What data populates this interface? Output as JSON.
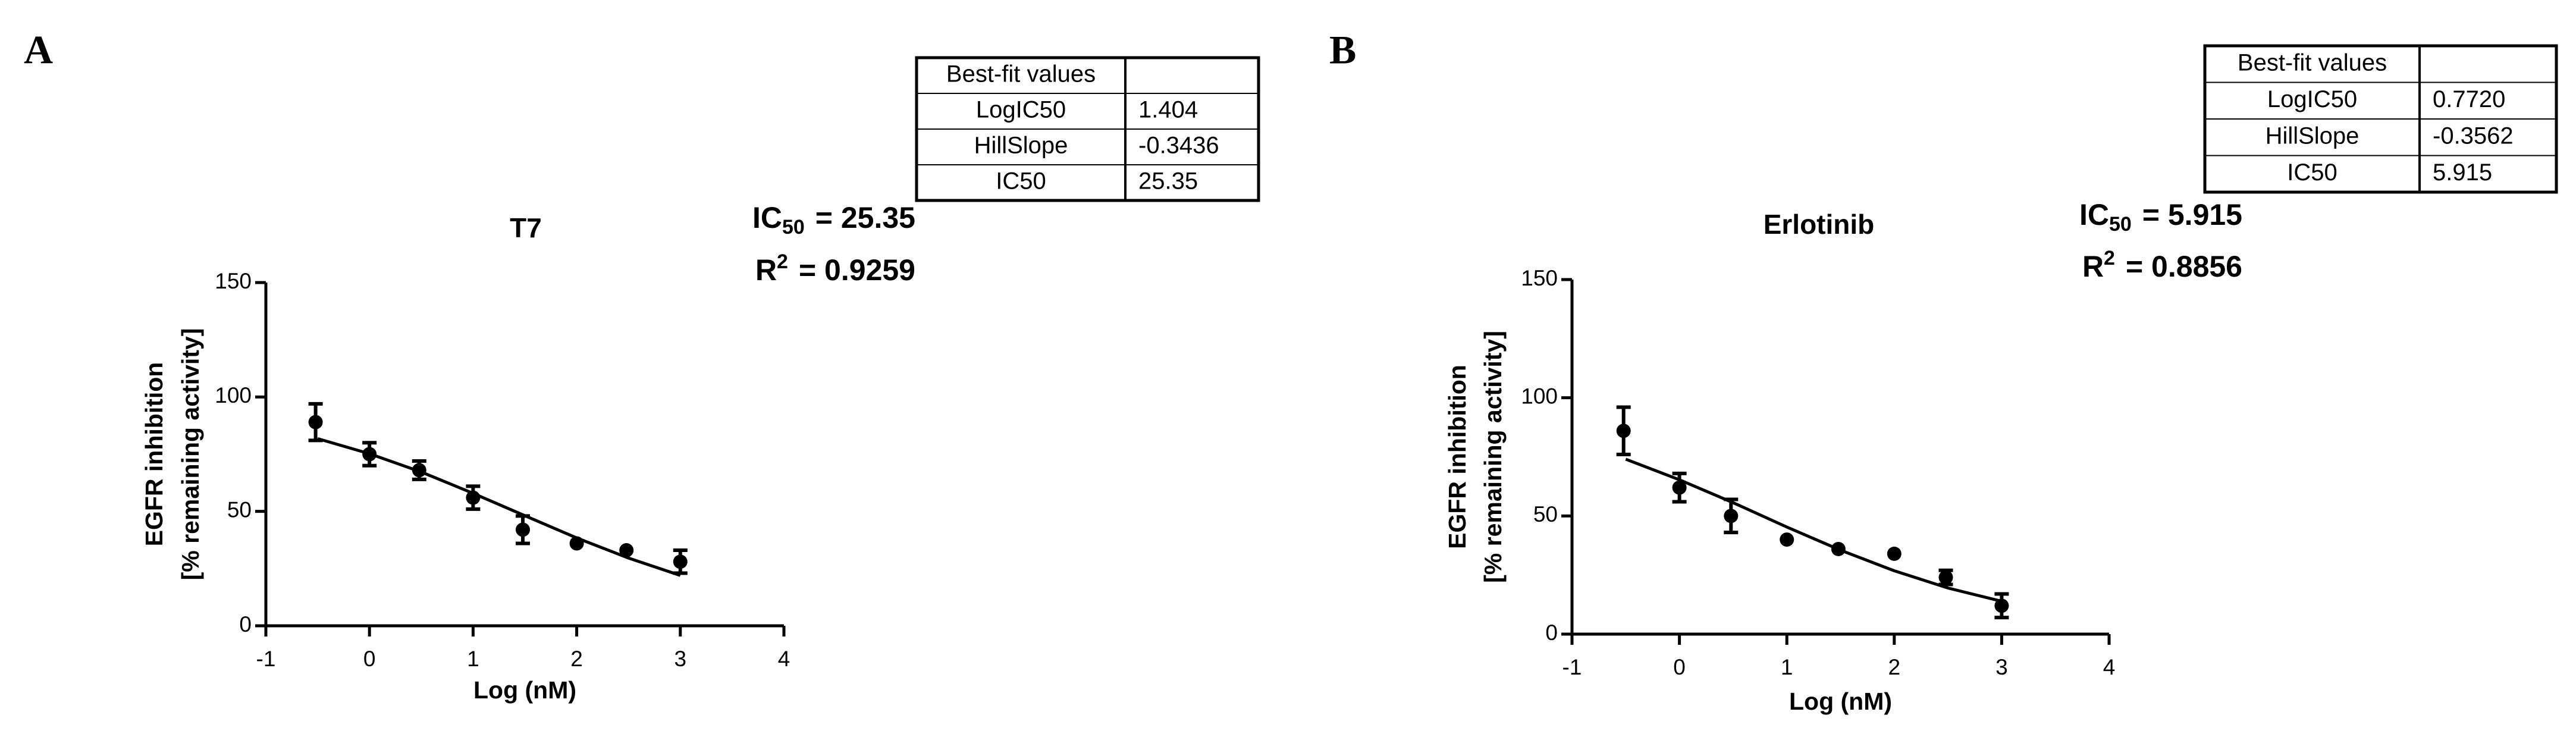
{
  "chart_data": [
    {
      "type": "scatter",
      "panel_label": "A",
      "title": "T7",
      "xlabel": "Log (nM)",
      "ylabel": [
        "EGFR inhibition",
        "[% remaining activity]"
      ],
      "x": [
        -0.52,
        0,
        0.48,
        1,
        1.48,
        2,
        2.48,
        3
      ],
      "values": [
        89,
        75,
        68,
        56,
        42,
        36,
        33,
        28
      ],
      "errors": [
        8,
        5,
        4,
        5,
        6,
        0,
        0,
        5
      ],
      "color": "#000000",
      "fit": {
        "x": [
          -0.5,
          0,
          0.5,
          1,
          1.5,
          2,
          2.5,
          3
        ],
        "values": [
          81.8,
          75.2,
          67.2,
          57.9,
          48.1,
          38.4,
          29.6,
          22.0
        ]
      },
      "xlim": [
        -1,
        4
      ],
      "xticks": [
        -1,
        0,
        1,
        2,
        3,
        4
      ],
      "ylim": [
        0,
        150
      ],
      "yticks": [
        0,
        50,
        100,
        150
      ],
      "ic50": {
        "symbol": "IC",
        "subscript": "50",
        "value": "= 25.35"
      },
      "r2": {
        "symbol": "R",
        "superscript": "2",
        "value": "= 0.9259"
      },
      "best_fit": {
        "title": "Best-fit values",
        "rows": [
          [
            "LogIC50",
            "1.404"
          ],
          [
            "HillSlope",
            "-0.3436"
          ],
          [
            "IC50",
            "25.35"
          ]
        ]
      }
    },
    {
      "type": "scatter",
      "panel_label": "B",
      "title": "Erlotinib",
      "xlabel": "Log (nM)",
      "ylabel": [
        "EGFR inhibition",
        "[% remaining activity]"
      ],
      "x": [
        -0.52,
        0,
        0.48,
        1,
        1.48,
        2,
        2.48,
        3
      ],
      "values": [
        86,
        62,
        50,
        40,
        36,
        34,
        24,
        12
      ],
      "errors": [
        10,
        6,
        7,
        0,
        0,
        0,
        3,
        5
      ],
      "color": "#000000",
      "fit": {
        "x": [
          -0.5,
          0,
          0.5,
          1,
          1.5,
          2,
          2.5,
          3
        ],
        "values": [
          74.0,
          65.3,
          55.6,
          45.3,
          35.5,
          26.8,
          19.5,
          13.9
        ]
      },
      "xlim": [
        -1,
        4
      ],
      "xticks": [
        -1,
        0,
        1,
        2,
        3,
        4
      ],
      "ylim": [
        0,
        150
      ],
      "yticks": [
        0,
        50,
        100,
        150
      ],
      "ic50": {
        "symbol": "IC",
        "subscript": "50",
        "value": "= 5.915"
      },
      "r2": {
        "symbol": "R",
        "superscript": "2",
        "value": "= 0.8856"
      },
      "best_fit": {
        "title": "Best-fit values",
        "rows": [
          [
            "LogIC50",
            "0.7720"
          ],
          [
            "HillSlope",
            "-0.3562"
          ],
          [
            "IC50",
            "5.915"
          ]
        ]
      }
    }
  ]
}
